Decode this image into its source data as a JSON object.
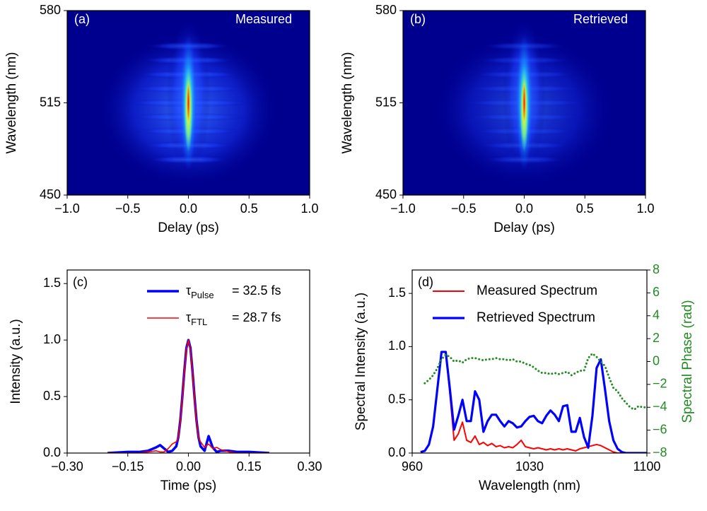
{
  "chart_data": [
    {
      "type": "heatmap",
      "panel_label": "(a)",
      "annotation": "Measured",
      "xlabel": "Delay (ps)",
      "ylabel": "Wavelength (nm)",
      "background": "#00008f",
      "xlim": [
        -1,
        1
      ],
      "xticks": [
        {
          "value": -1,
          "label": "−1.0"
        },
        {
          "value": -0.5,
          "label": "−0.5"
        },
        {
          "value": 0,
          "label": "0.0"
        },
        0.5,
        {
          "value": 1,
          "label": "1.0"
        }
      ],
      "ylim": [
        450,
        580
      ],
      "yticks": [
        450,
        515,
        580
      ]
    },
    {
      "type": "heatmap",
      "panel_label": "(b)",
      "annotation": "Retrieved",
      "xlabel": "Delay (ps)",
      "ylabel": "Wavelength (nm)",
      "background": "#00008f",
      "xlim": [
        -1,
        1
      ],
      "xticks": [
        {
          "value": -1,
          "label": "−1.0"
        },
        {
          "value": -0.5,
          "label": "−0.5"
        },
        {
          "value": 0,
          "label": "0.0"
        },
        0.5,
        {
          "value": 1,
          "label": "1.0"
        }
      ],
      "ylim": [
        450,
        580
      ],
      "yticks": [
        450,
        515,
        580
      ]
    },
    {
      "type": "line",
      "panel_label": "(c)",
      "xlabel": "Time (ps)",
      "ylabel": "Intensity (a.u.)",
      "legend": "upper right",
      "xlim": [
        -0.3,
        0.3
      ],
      "xticks": [
        {
          "value": -0.3,
          "label": "−0.30"
        },
        {
          "value": -0.15,
          "label": "−0.15"
        },
        {
          "value": 0,
          "label": "0.00"
        },
        0.15,
        {
          "value": 0.3,
          "label": "0.30"
        }
      ],
      "ylim": [
        0,
        1.62
      ],
      "yticks": [
        {
          "value": 0,
          "label": "0.0"
        },
        0.5,
        {
          "value": 1,
          "label": "1.0"
        },
        1.5
      ],
      "x": [
        -0.2,
        -0.15,
        -0.12,
        -0.1,
        -0.08,
        -0.07,
        -0.06,
        -0.05,
        -0.04,
        -0.03,
        -0.025,
        -0.02,
        -0.015,
        -0.01,
        -0.005,
        0,
        0.005,
        0.01,
        0.015,
        0.02,
        0.025,
        0.03,
        0.04,
        0.05,
        0.06,
        0.07,
        0.08,
        0.1,
        0.12,
        0.15,
        0.2
      ],
      "series": [
        {
          "name": {
            "symbol": "τ",
            "sub": "Pulse",
            "text": "= 32.5 fs"
          },
          "color": "#0000ff",
          "line_width": 3.5,
          "values": [
            0,
            0.01,
            0.01,
            0.02,
            0.05,
            0.07,
            0.04,
            0.01,
            0.02,
            0.06,
            0.14,
            0.29,
            0.5,
            0.73,
            0.93,
            1,
            0.93,
            0.73,
            0.5,
            0.29,
            0.14,
            0.06,
            0.02,
            0.15,
            0.05,
            0.01,
            0.02,
            0.02,
            0.01,
            0.01,
            0
          ]
        },
        {
          "name": {
            "symbol": "τ",
            "sub": "FTL",
            "text": "= 28.7 fs"
          },
          "color": "#ff0000",
          "line_width": 1.6,
          "values": [
            0,
            0,
            0,
            0.01,
            0.02,
            0.01,
            0.01,
            0.04,
            0.08,
            0.1,
            0.14,
            0.28,
            0.49,
            0.72,
            0.92,
            1,
            0.92,
            0.72,
            0.49,
            0.28,
            0.14,
            0.1,
            0.05,
            0.08,
            0.04,
            0.05,
            0.03,
            0.01,
            0,
            0,
            0
          ]
        }
      ]
    },
    {
      "type": "line",
      "panel_label": "(d)",
      "xlabel": "Wavelength (nm)",
      "ylabel": "Spectral Intensity (a.u.)",
      "y2label": "Spectral Phase (rad)",
      "legend": "upper right",
      "xlim": [
        960,
        1100
      ],
      "xticks": [
        960,
        1030,
        1100
      ],
      "ylim": [
        0,
        1.72
      ],
      "yticks": [
        {
          "value": 0,
          "label": "0.0"
        },
        0.5,
        {
          "value": 1,
          "label": "1.0"
        },
        1.5
      ],
      "y2lim": [
        -8,
        8
      ],
      "y2ticks": [
        {
          "value": -8,
          "label": "−8"
        },
        {
          "value": -6,
          "label": "−6"
        },
        {
          "value": -4,
          "label": "−4"
        },
        {
          "value": -2,
          "label": "−2"
        },
        0,
        2,
        4,
        6,
        8
      ],
      "x": [
        965,
        967.5,
        970,
        972.5,
        975,
        977.5,
        980,
        982.5,
        985,
        987.5,
        990,
        992.5,
        995,
        997.5,
        1000,
        1002.5,
        1005,
        1007.5,
        1010,
        1012.5,
        1015,
        1017.5,
        1020,
        1022.5,
        1025,
        1027.5,
        1030,
        1032.5,
        1035,
        1037.5,
        1040,
        1042.5,
        1045,
        1047.5,
        1050,
        1052.5,
        1055,
        1057.5,
        1060,
        1062.5,
        1065,
        1067.5,
        1070,
        1072.5,
        1075,
        1077.5,
        1080,
        1082.5,
        1085,
        1087.5,
        1090,
        1092.5,
        1095,
        1097.5,
        1100
      ],
      "series": [
        {
          "name": "Measured Spectrum",
          "color": "#ff0000",
          "line_width": 2,
          "values": [
            0.01,
            0.02,
            0.08,
            0.25,
            0.6,
            0.95,
            0.95,
            0.55,
            0.12,
            0.18,
            0.29,
            0.12,
            0.1,
            0.16,
            0.08,
            0.1,
            0.07,
            0.09,
            0.06,
            0.07,
            0.05,
            0.06,
            0.05,
            0.08,
            0.12,
            0.06,
            0.05,
            0.04,
            0.05,
            0.04,
            0.03,
            0.04,
            0.03,
            0.04,
            0.03,
            0.04,
            0.03,
            0.02,
            0.04,
            0.05,
            0.06,
            0.07,
            0.08,
            0.07,
            0.05,
            0.03,
            0.01,
            0,
            0,
            0,
            0,
            0,
            0,
            0,
            0
          ]
        },
        {
          "name": "Retrieved Spectrum",
          "color": "#0000ff",
          "line_width": 3.2,
          "values": [
            0.01,
            0.02,
            0.08,
            0.25,
            0.6,
            0.95,
            0.95,
            0.6,
            0.22,
            0.35,
            0.5,
            0.3,
            0.3,
            0.58,
            0.5,
            0.2,
            0.3,
            0.36,
            0.36,
            0.3,
            0.25,
            0.3,
            0.28,
            0.24,
            0.25,
            0.3,
            0.34,
            0.35,
            0.3,
            0.28,
            0.35,
            0.4,
            0.36,
            0.3,
            0.44,
            0.45,
            0.2,
            0.2,
            0.33,
            0.15,
            0.05,
            0.35,
            0.8,
            0.88,
            0.6,
            0.3,
            0.12,
            0.04,
            0.01,
            0,
            0,
            0,
            0,
            0,
            0
          ]
        },
        {
          "color": "#228b22",
          "line_width": 3,
          "style": "dotted",
          "axis": "y2",
          "values": [
            null,
            -1.9,
            -1.6,
            -1.2,
            -0.6,
            0.2,
            0.6,
            0.4,
            0,
            0.1,
            -0.1,
            0.2,
            0.3,
            0.3,
            0.2,
            0.1,
            0.2,
            0.2,
            0.3,
            0.2,
            0.2,
            0.1,
            0.2,
            0,
            0,
            -0.2,
            -0.3,
            -0.5,
            -0.8,
            -1,
            -1,
            -1.1,
            -1,
            -1.1,
            -1,
            -0.9,
            -1.2,
            -1,
            -0.8,
            -0.8,
            0.3,
            0.7,
            0.4,
            0,
            -0.4,
            -1.4,
            -2.3,
            -2.6,
            -3.2,
            -3.6,
            -4,
            -4.2,
            -3.9,
            -4,
            -4
          ]
        }
      ]
    }
  ]
}
